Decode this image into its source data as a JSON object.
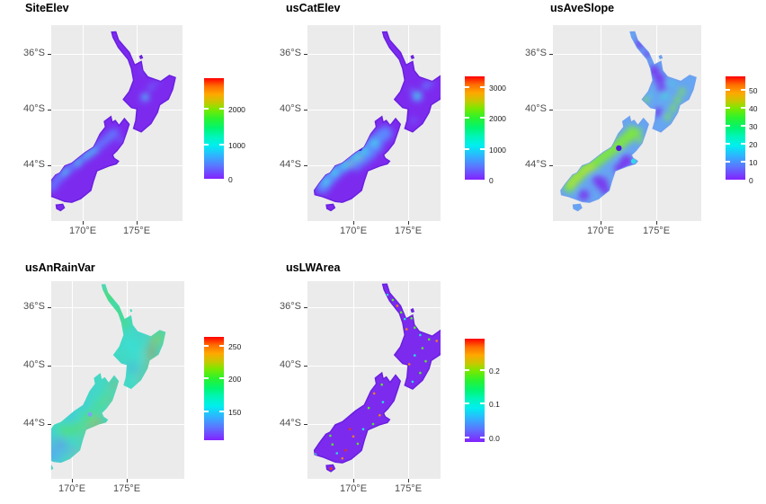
{
  "figure": {
    "background": "#FFFFFF",
    "panel_background": "#EBEBEB",
    "gridline_color": "#FFFFFF",
    "axis_text_color": "#4D4D4D",
    "title_color": "#000000",
    "colorbar_stops": [
      [
        "#ff0000",
        0
      ],
      [
        "#ff6d00",
        8
      ],
      [
        "#ffa800",
        16
      ],
      [
        "#c8c800",
        24
      ],
      [
        "#7be800",
        31
      ],
      [
        "#2cf22c",
        40
      ],
      [
        "#00f573",
        50
      ],
      [
        "#00f5b8",
        58
      ],
      [
        "#00efef",
        67
      ],
      [
        "#2fb4ff",
        77
      ],
      [
        "#5a78ff",
        87
      ],
      [
        "#8322ff",
        100
      ]
    ]
  },
  "axes": {
    "x_tick_labels": [
      "170°E",
      "175°E"
    ],
    "y_tick_labels": [
      "36°S",
      "40°S",
      "44°S"
    ]
  },
  "chart_data": [
    {
      "type": "heatmap",
      "subtype": "point-map",
      "map_region": "New Zealand",
      "title": "SiteElev",
      "x_axis": {
        "tick_labels": [
          "170°E",
          "175°E"
        ]
      },
      "y_axis": {
        "tick_labels": [
          "36°S",
          "40°S",
          "44°S"
        ]
      },
      "legend": {
        "tick_labels": [
          "2000",
          "1000",
          "0"
        ],
        "tick_values": [
          2000,
          1000,
          0
        ],
        "colormap": "rainbow: red=high, orange, green, cyan, blue, violet=low"
      },
      "spatial_pattern": "Mostly violet (low elevation); cyan/light-blue band along Southern Alps of the South Island and central North Island plateau."
    },
    {
      "type": "heatmap",
      "subtype": "point-map",
      "map_region": "New Zealand",
      "title": "usCatElev",
      "x_axis": {
        "tick_labels": [
          "170°E",
          "175°E"
        ]
      },
      "y_axis": {
        "tick_labels": [
          "36°S",
          "40°S",
          "44°S"
        ]
      },
      "legend": {
        "tick_labels": [
          "3000",
          "2000",
          "1000",
          "0"
        ],
        "tick_values": [
          3000,
          2000,
          1000,
          0
        ],
        "colormap": "rainbow: red=high, orange, green, cyan, blue, violet=low"
      },
      "spatial_pattern": "Violet base with broad cyan/blue band over the Southern Alps and central North Island; single dark navy point in mid Canterbury (~170.6E, 42.8S)."
    },
    {
      "type": "heatmap",
      "subtype": "point-map",
      "map_region": "New Zealand",
      "title": "usAveSlope",
      "x_axis": {
        "tick_labels": [
          "170°E",
          "175°E"
        ]
      },
      "y_axis": {
        "tick_labels": [
          "36°S",
          "40°S",
          "44°S"
        ]
      },
      "legend": {
        "tick_labels": [
          "50",
          "40",
          "30",
          "20",
          "10",
          "0"
        ],
        "tick_values": [
          50,
          40,
          30,
          20,
          10,
          0
        ],
        "colormap": "rainbow: red=high, orange, green, cyan, blue, violet=low"
      },
      "spatial_pattern": "Light blue/cyan overall; green-yellow along mountain ranges (Southern Alps, Fiordland, North Island axial ranges); violet in lowlands (Waikato, Canterbury Plains, Otago, Southland); dark violet point near 171.6E, 42.8S."
    },
    {
      "type": "heatmap",
      "subtype": "smooth-surface-map",
      "map_region": "New Zealand",
      "title": "usAnRainVar",
      "x_axis": {
        "tick_labels": [
          "170°E",
          "175°E"
        ]
      },
      "y_axis": {
        "tick_labels": [
          "36°S",
          "40°S",
          "44°S"
        ]
      },
      "legend": {
        "tick_labels": [
          "250",
          "200",
          "150"
        ],
        "tick_values": [
          250,
          200,
          150
        ],
        "colormap": "rainbow: red=high, orange, green, cyan, blue, violet=low"
      },
      "spatial_pattern": "Smooth surface: blue/cyan in Fiordland and the west; green over much of both islands; orange along eastern coasts (Marlborough, Canterbury, Hawke's Bay); red hotspot inland Hawke's Bay (~177.3E, 39.1S)."
    },
    {
      "type": "heatmap",
      "subtype": "point-map",
      "map_region": "New Zealand",
      "title": "usLWArea",
      "x_axis": {
        "tick_labels": [
          "170°E",
          "175°E"
        ]
      },
      "y_axis": {
        "tick_labels": [
          "36°S",
          "40°S",
          "44°S"
        ]
      },
      "legend": {
        "tick_labels": [
          "0.2",
          "0.1",
          "0.0"
        ],
        "tick_values": [
          0.2,
          0.1,
          0.0
        ],
        "colormap": "rainbow: red=high, orange, green, cyan, blue, violet=low"
      },
      "spatial_pattern": "Near-uniform violet (≈0) with tiny scattered cyan/green/orange/red specks; larger cyan point at the far southwest tip of the South Island."
    }
  ]
}
